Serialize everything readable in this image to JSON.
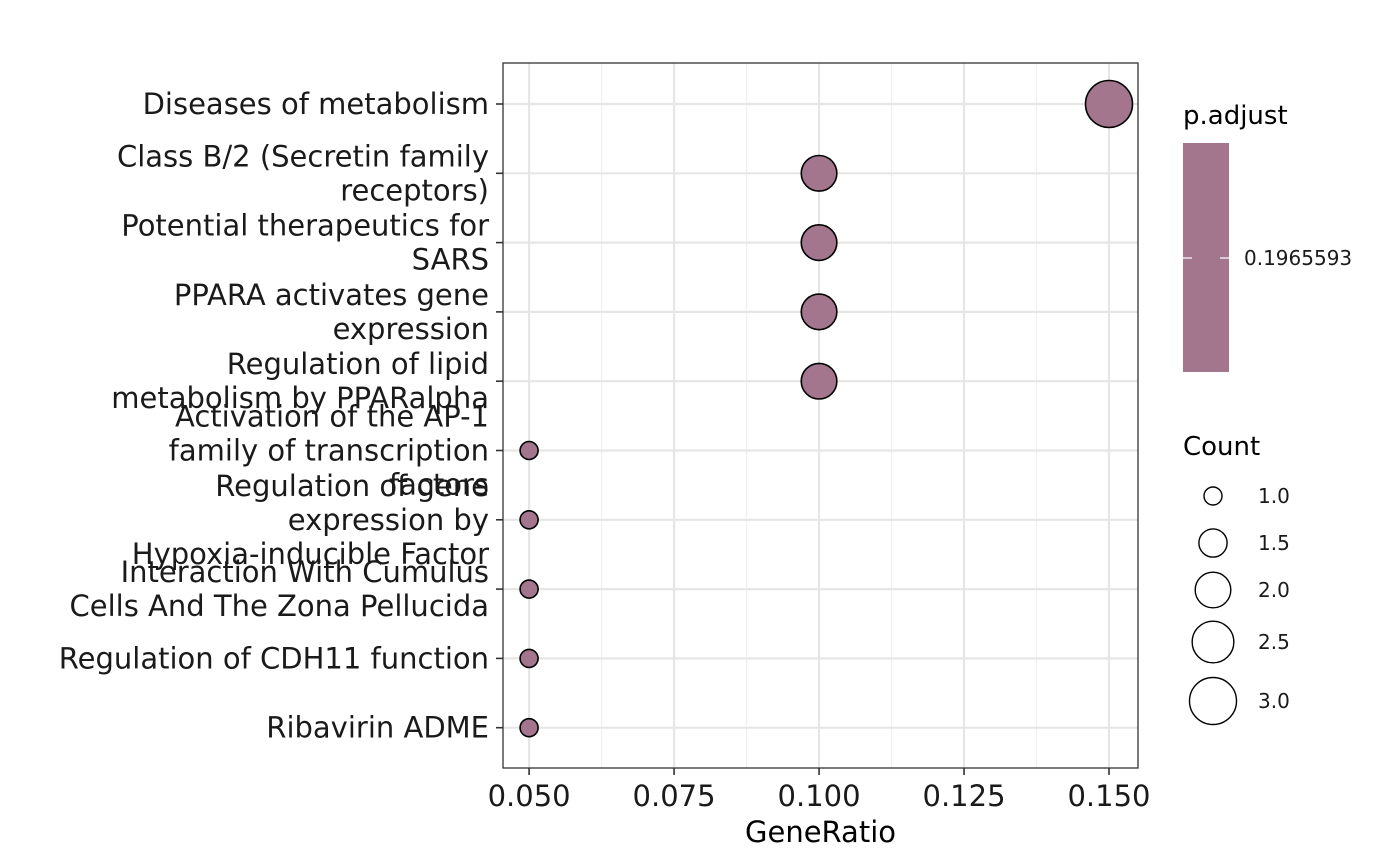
{
  "chart_data": {
    "type": "scatter",
    "xlabel": "GeneRatio",
    "xlim": [
      0.0455,
      0.155
    ],
    "xticks": [
      "0.050",
      "0.075",
      "0.100",
      "0.125",
      "0.150"
    ],
    "xtick_values": [
      0.05,
      0.075,
      0.1,
      0.125,
      0.15
    ],
    "grid": true,
    "categories": [
      "Diseases of metabolism",
      "Class B/2 (Secretin family receptors)",
      "Potential therapeutics for SARS",
      "PPARA activates gene expression",
      "Regulation of lipid metabolism by PPARalpha",
      "Activation of the AP-1 family of transcription factors",
      "Regulation of gene expression by Hypoxia-inducible Factor",
      "Interaction With Cumulus Cells And The Zona Pellucida",
      "Regulation of CDH11 function",
      "Ribavirin ADME"
    ],
    "category_lines": [
      [
        "Diseases of metabolism"
      ],
      [
        "Class B/2 (Secretin family",
        "receptors)"
      ],
      [
        "Potential therapeutics for",
        "SARS"
      ],
      [
        "PPARA activates gene",
        "expression"
      ],
      [
        "Regulation of lipid",
        "metabolism by PPARalpha"
      ],
      [
        "Activation of the AP-1",
        "family of transcription",
        "factors"
      ],
      [
        "Regulation of gene",
        "expression by",
        "Hypoxia-inducible Factor"
      ],
      [
        "Interaction With Cumulus",
        "Cells And The Zona Pellucida"
      ],
      [
        "Regulation of CDH11 function"
      ],
      [
        "Ribavirin ADME"
      ]
    ],
    "points": [
      {
        "category": "Diseases of metabolism",
        "gene_ratio": 0.15,
        "count": 3,
        "p_adjust": 0.1965593
      },
      {
        "category": "Class B/2 (Secretin family receptors)",
        "gene_ratio": 0.1,
        "count": 2,
        "p_adjust": 0.1965593
      },
      {
        "category": "Potential therapeutics for SARS",
        "gene_ratio": 0.1,
        "count": 2,
        "p_adjust": 0.1965593
      },
      {
        "category": "PPARA activates gene expression",
        "gene_ratio": 0.1,
        "count": 2,
        "p_adjust": 0.1965593
      },
      {
        "category": "Regulation of lipid metabolism by PPARalpha",
        "gene_ratio": 0.1,
        "count": 2,
        "p_adjust": 0.1965593
      },
      {
        "category": "Activation of the AP-1 family of transcription factors",
        "gene_ratio": 0.05,
        "count": 1,
        "p_adjust": 0.1965593
      },
      {
        "category": "Regulation of gene expression by Hypoxia-inducible Factor",
        "gene_ratio": 0.05,
        "count": 1,
        "p_adjust": 0.1965593
      },
      {
        "category": "Interaction With Cumulus Cells And The Zona Pellucida",
        "gene_ratio": 0.05,
        "count": 1,
        "p_adjust": 0.1965593
      },
      {
        "category": "Regulation of CDH11 function",
        "gene_ratio": 0.05,
        "count": 1,
        "p_adjust": 0.1965593
      },
      {
        "category": "Ribavirin ADME",
        "gene_ratio": 0.05,
        "count": 1,
        "p_adjust": 0.1965593
      }
    ],
    "point_color": "#a3768e",
    "legend_color": {
      "title": "p.adjust",
      "label": "0.1965593",
      "color": "#a3768e"
    },
    "legend_size": {
      "title": "Count",
      "values": [
        1.0,
        1.5,
        2.0,
        2.5,
        3.0
      ],
      "labels": [
        "1.0",
        "1.5",
        "2.0",
        "2.5",
        "3.0"
      ]
    },
    "legend_placement": "right"
  }
}
